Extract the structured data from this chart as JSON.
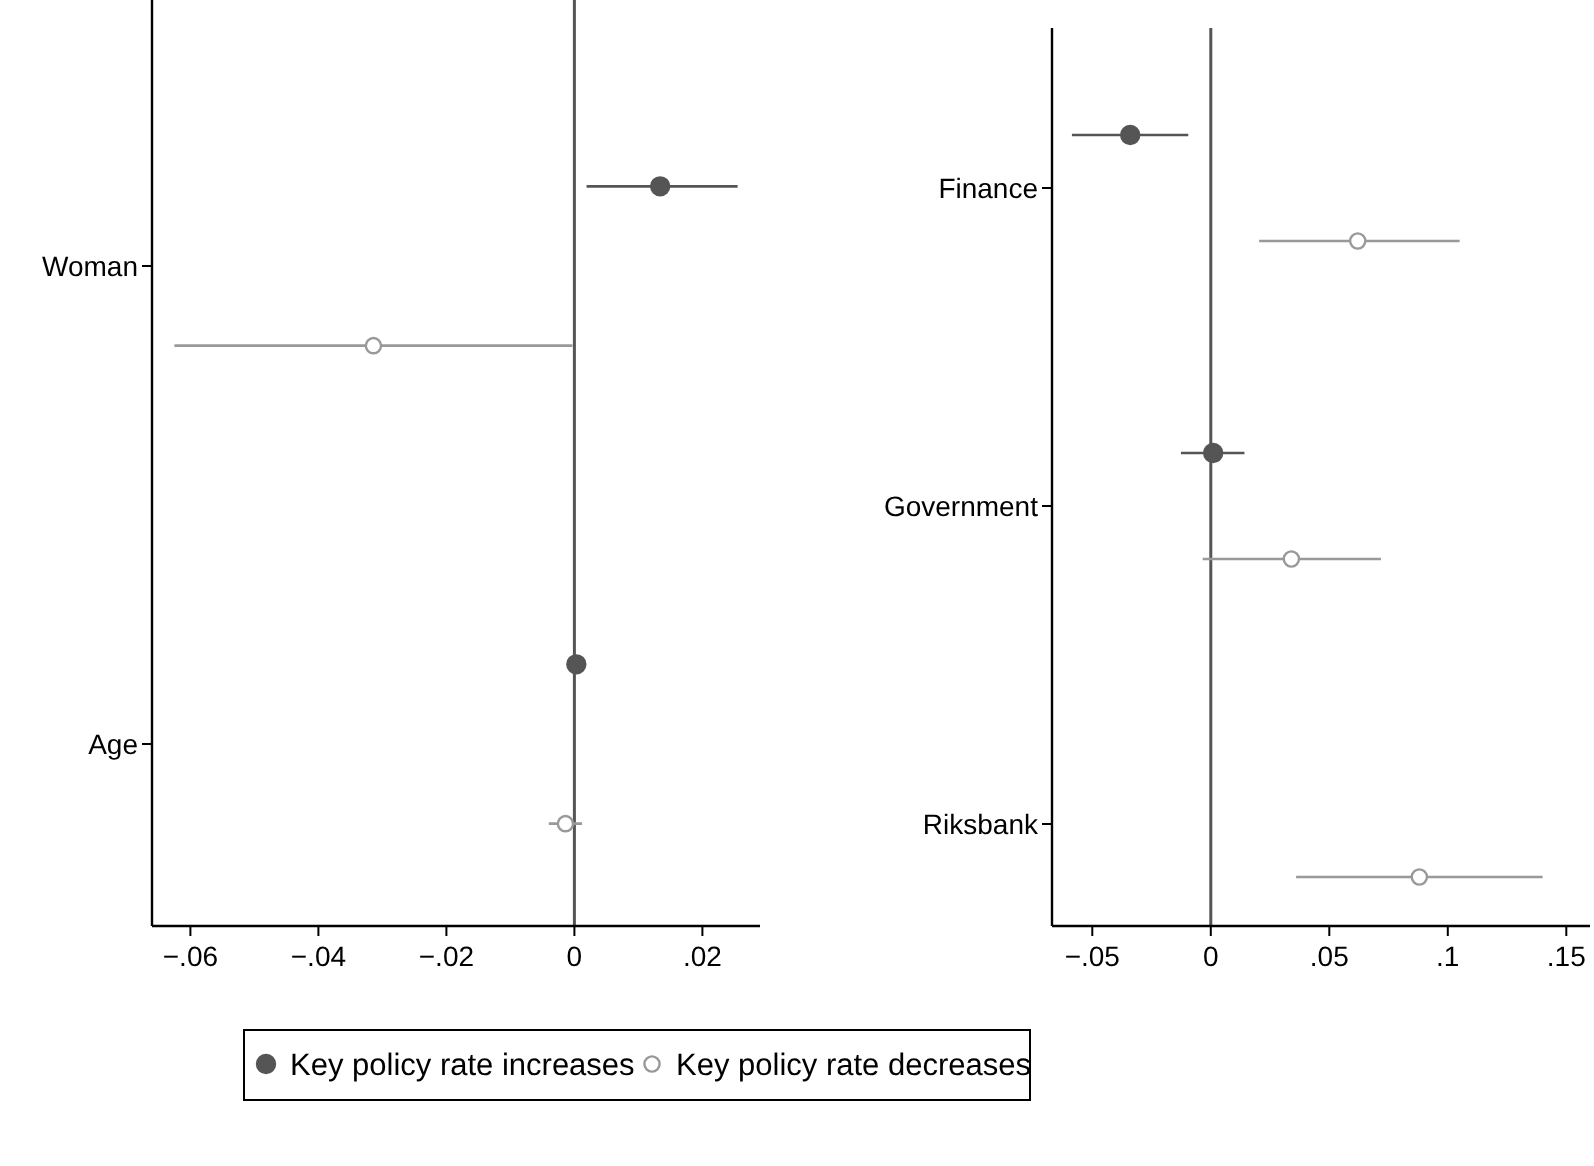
{
  "chart_data": [
    {
      "type": "scatter",
      "orientation": "horizontal",
      "categories": [
        "Woman",
        "Age"
      ],
      "xlim": [
        -0.066,
        0.029
      ],
      "xticks": [
        {
          "value": -0.06,
          "label": "−.06"
        },
        {
          "value": -0.04,
          "label": "−.04"
        },
        {
          "value": -0.02,
          "label": "−.02"
        },
        {
          "value": 0,
          "label": "0"
        },
        {
          "value": 0.02,
          "label": ".02"
        }
      ],
      "marker": "circle",
      "legend": "bottom",
      "ref_lines": [
        {
          "axis": "x",
          "value": 0,
          "color": "#555555"
        }
      ],
      "series": [
        {
          "name": "Key policy rate increases",
          "color": "#555555",
          "values": [
            0.0134,
            0.0003
          ],
          "errors": [
            [
              0.0019,
              0.0255
            ],
            null
          ]
        },
        {
          "name": "Key policy rate decreases",
          "color": "#999999",
          "values": [
            -0.0314,
            -0.0014
          ],
          "errors": [
            [
              -0.0625,
              -0.0003
            ],
            [
              -0.004,
              0.0012
            ]
          ]
        }
      ]
    },
    {
      "type": "scatter",
      "orientation": "horizontal",
      "categories": [
        "Finance",
        "Government",
        "Riksbank"
      ],
      "xlim": [
        -0.067,
        0.16
      ],
      "xticks": [
        {
          "value": -0.05,
          "label": "−.05"
        },
        {
          "value": 0,
          "label": "0"
        },
        {
          "value": 0.05,
          "label": ".05"
        },
        {
          "value": 0.1,
          "label": ".1"
        },
        {
          "value": 0.15,
          "label": ".15"
        }
      ],
      "marker": "circle",
      "ref_lines": [
        {
          "axis": "x",
          "value": 0,
          "color": "#555555"
        }
      ],
      "series": [
        {
          "color": "#555555",
          "values": [
            -0.034,
            0.001,
            null
          ],
          "errors": [
            [
              -0.0586,
              -0.0095
            ],
            [
              -0.0126,
              0.0142
            ],
            null
          ]
        },
        {
          "color": "#999999",
          "values": [
            0.062,
            0.034,
            0.088
          ],
          "errors": [
            [
              0.0204,
              0.105
            ],
            [
              -0.0034,
              0.0718
            ],
            [
              0.036,
              0.14
            ]
          ]
        }
      ]
    }
  ]
}
